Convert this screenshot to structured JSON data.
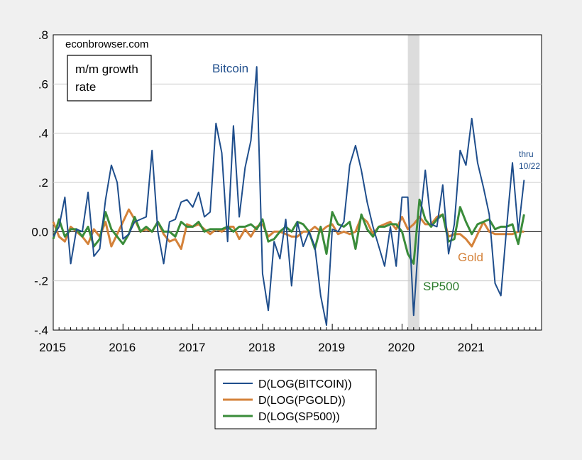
{
  "chart_data": {
    "type": "line",
    "source_label": "econbrowser.com",
    "note_box": [
      "m/m growth",
      "rate"
    ],
    "ylim": [
      -0.4,
      0.8
    ],
    "y_ticks": [
      {
        "value": 0.8,
        "label": ".8"
      },
      {
        "value": 0.6,
        "label": ".6"
      },
      {
        "value": 0.4,
        "label": ".4"
      },
      {
        "value": 0.2,
        "label": ".2"
      },
      {
        "value": 0.0,
        "label": "0.0"
      },
      {
        "value": -0.2,
        "label": "-.2"
      },
      {
        "value": -0.4,
        "label": "-.4"
      }
    ],
    "x_start": "2015-01",
    "x_end": "2021-12",
    "x_ticks": [
      "2015",
      "2016",
      "2017",
      "2018",
      "2019",
      "2020",
      "2021"
    ],
    "recession_shading": {
      "start": "2020-02",
      "end": "2020-04"
    },
    "annotations": {
      "bitcoin": "Bitcoin",
      "gold": "Gold",
      "sp500": "SP500",
      "thru_1": "thru",
      "thru_2": "10/22"
    },
    "series": [
      {
        "name": "D(LOG(BITCOIN))",
        "color": "#1f4e8c",
        "start": "2015-01",
        "values": [
          -0.02,
          0.02,
          0.14,
          -0.13,
          0.01,
          0.0,
          0.16,
          -0.1,
          -0.07,
          0.13,
          0.27,
          0.2,
          -0.03,
          -0.01,
          0.04,
          0.05,
          0.06,
          0.33,
          0.0,
          -0.13,
          0.04,
          0.05,
          0.12,
          0.13,
          0.1,
          0.16,
          0.06,
          0.08,
          0.44,
          0.32,
          -0.04,
          0.43,
          0.06,
          0.26,
          0.37,
          0.67,
          -0.17,
          -0.32,
          -0.04,
          -0.11,
          0.05,
          -0.22,
          0.04,
          -0.06,
          0.0,
          -0.06,
          -0.26,
          -0.38,
          0.01,
          0.0,
          0.04,
          0.27,
          0.35,
          0.25,
          0.12,
          0.02,
          -0.06,
          -0.14,
          0.02,
          -0.14,
          0.14,
          0.14,
          -0.34,
          0.02,
          0.25,
          0.03,
          0.02,
          0.19,
          -0.09,
          0.03,
          0.33,
          0.27,
          0.46,
          0.28,
          0.18,
          0.07,
          -0.21,
          -0.26,
          0.02,
          0.28,
          0.0,
          0.21
        ]
      },
      {
        "name": "D(LOG(PGOLD))",
        "color": "#d4823a",
        "start": "2015-01",
        "values": [
          0.04,
          -0.02,
          -0.04,
          0.02,
          0.0,
          -0.02,
          -0.05,
          0.01,
          -0.02,
          0.04,
          -0.06,
          -0.01,
          0.04,
          0.09,
          0.05,
          0.0,
          0.01,
          0.0,
          0.04,
          -0.01,
          -0.04,
          -0.03,
          -0.07,
          0.03,
          0.02,
          0.03,
          0.01,
          -0.01,
          0.01,
          0.0,
          0.02,
          0.02,
          -0.03,
          0.01,
          -0.02,
          0.02,
          0.03,
          -0.02,
          0.0,
          0.0,
          -0.01,
          -0.02,
          -0.02,
          0.0,
          0.0,
          0.02,
          0.0,
          0.02,
          0.03,
          -0.01,
          0.0,
          -0.01,
          0.0,
          0.06,
          0.04,
          -0.01,
          0.02,
          0.03,
          0.04,
          0.01,
          0.06,
          0.01,
          0.03,
          0.06,
          0.03,
          0.03,
          0.06,
          0.07,
          -0.02,
          -0.01,
          -0.01,
          -0.03,
          -0.06,
          -0.01,
          0.04,
          0.0,
          -0.01,
          -0.01,
          -0.01,
          -0.01,
          0.0,
          0.0
        ]
      },
      {
        "name": "D(LOG(SP500))",
        "color": "#3a8c3a",
        "start": "2015-01",
        "values": [
          -0.03,
          0.05,
          -0.02,
          0.01,
          0.01,
          -0.02,
          0.02,
          -0.06,
          -0.03,
          0.08,
          0.01,
          -0.02,
          -0.05,
          -0.01,
          0.06,
          0.0,
          0.02,
          0.0,
          0.04,
          0.0,
          0.0,
          -0.02,
          0.04,
          0.02,
          0.02,
          0.04,
          0.0,
          0.01,
          0.01,
          0.01,
          0.02,
          0.0,
          0.02,
          0.02,
          0.03,
          0.01,
          0.05,
          -0.04,
          -0.03,
          0.0,
          0.02,
          0.0,
          0.04,
          0.03,
          0.0,
          -0.07,
          0.02,
          -0.09,
          0.08,
          0.03,
          0.02,
          0.04,
          -0.07,
          0.07,
          0.01,
          -0.02,
          0.02,
          0.02,
          0.03,
          0.03,
          0.0,
          -0.09,
          -0.13,
          0.13,
          0.05,
          0.02,
          0.05,
          0.07,
          -0.04,
          -0.03,
          0.1,
          0.04,
          -0.01,
          0.03,
          0.04,
          0.05,
          0.01,
          0.02,
          0.02,
          0.03,
          -0.05,
          0.07
        ]
      }
    ],
    "legend_position": "bottom-center"
  }
}
